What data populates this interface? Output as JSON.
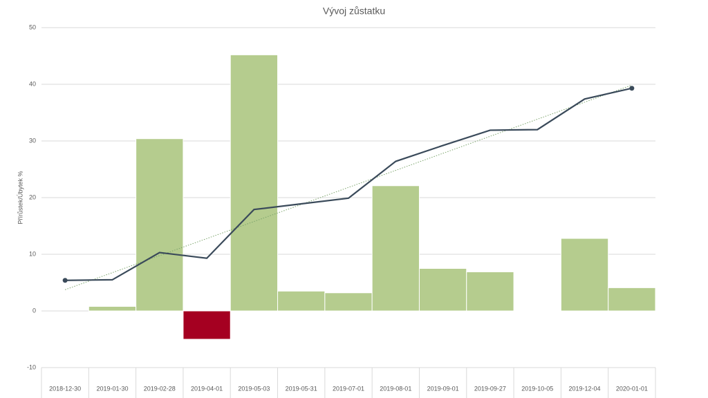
{
  "chart_data": {
    "type": "bar-line",
    "title": "Vývoj zůstatku",
    "y_label": "Přírůstek/Úbytek %",
    "categories": [
      "2018-12-30",
      "2019-01-30",
      "2019-02-28",
      "2019-04-01",
      "2019-05-03",
      "2019-05-31",
      "2019-07-01",
      "2019-08-01",
      "2019-09-01",
      "2019-09-27",
      "2019-10-05",
      "2019-12-04",
      "2020-01-01"
    ],
    "series": [
      {
        "type": "bar",
        "color": "#b5cc8e",
        "negative_color": "#a50021",
        "values": [
          0,
          0.8,
          30.4,
          -5,
          45.2,
          3.5,
          3.2,
          22.1,
          7.5,
          6.9,
          0.1,
          12.8,
          4.1
        ]
      },
      {
        "type": "line",
        "color": "#3a4a5a",
        "trendline": true,
        "trend_color": "#7aa36a",
        "values": [
          5.4,
          5.5,
          10.3,
          9.3,
          17.9,
          18.9,
          19.9,
          26.4,
          29.2,
          31.9,
          32.0,
          37.4,
          39.3
        ]
      }
    ],
    "ylim": [
      -10,
      50
    ],
    "yticks": [
      -10,
      0,
      10,
      20,
      30,
      40,
      50
    ],
    "grid": true
  }
}
